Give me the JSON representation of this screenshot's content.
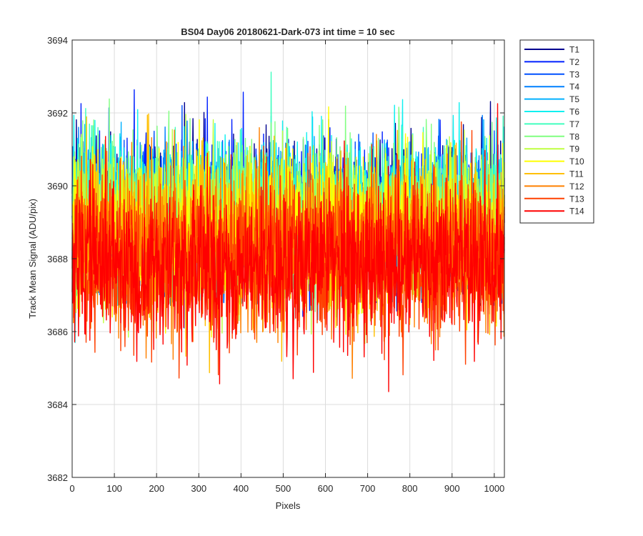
{
  "chart_data": {
    "type": "line",
    "title": "BS04 Day06 20180621-Dark-073 int time = 10 sec",
    "xlabel": "Pixels",
    "ylabel": "Track Mean Signal (ADU/pix)",
    "xlim": [
      0,
      1024
    ],
    "ylim": [
      3682,
      3694
    ],
    "xticks": [
      0,
      100,
      200,
      300,
      400,
      500,
      600,
      700,
      800,
      900,
      1000
    ],
    "yticks": [
      3682,
      3684,
      3686,
      3688,
      3690,
      3692,
      3694
    ],
    "grid": true,
    "legend_position": "outside-top-right",
    "num_points": 1024,
    "series": [
      {
        "name": "T1",
        "color": "#00008f",
        "mean": 3689.3,
        "spread": 1.15
      },
      {
        "name": "T2",
        "color": "#0020ff",
        "mean": 3689.2,
        "spread": 1.15
      },
      {
        "name": "T3",
        "color": "#0050ff",
        "mean": 3689.1,
        "spread": 1.15
      },
      {
        "name": "T4",
        "color": "#0080ff",
        "mean": 3689.0,
        "spread": 1.15
      },
      {
        "name": "T5",
        "color": "#00b0ff",
        "mean": 3689.0,
        "spread": 1.15
      },
      {
        "name": "T6",
        "color": "#10f0f0",
        "mean": 3689.4,
        "spread": 1.15
      },
      {
        "name": "T7",
        "color": "#40ffbf",
        "mean": 3689.3,
        "spread": 1.15
      },
      {
        "name": "T8",
        "color": "#80ff80",
        "mean": 3689.2,
        "spread": 1.15
      },
      {
        "name": "T9",
        "color": "#bfff40",
        "mean": 3689.0,
        "spread": 1.15
      },
      {
        "name": "T10",
        "color": "#ffff00",
        "mean": 3688.8,
        "spread": 1.2
      },
      {
        "name": "T11",
        "color": "#ffbf00",
        "mean": 3688.5,
        "spread": 1.25
      },
      {
        "name": "T12",
        "color": "#ff8000",
        "mean": 3688.2,
        "spread": 1.3
      },
      {
        "name": "T13",
        "color": "#ff4000",
        "mean": 3688.0,
        "spread": 1.3
      },
      {
        "name": "T14",
        "color": "#ff0000",
        "mean": 3687.8,
        "spread": 1.3
      }
    ]
  }
}
